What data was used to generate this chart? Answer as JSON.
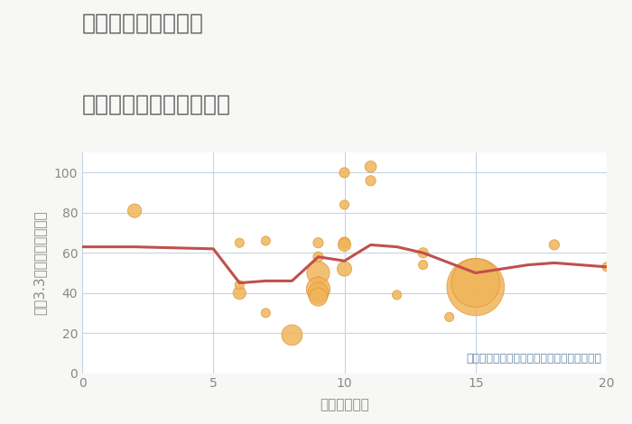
{
  "title_line1": "兵庫県川西市鴬台の",
  "title_line2": "駅距離別中古戸建て価格",
  "xlabel": "駅距離（分）",
  "ylabel": "坪（3.3㎡）単価（万円）",
  "annotation": "円の大きさは、取引のあった物件面積を示す",
  "background_color": "#f7f7f5",
  "plot_bg_color": "#ffffff",
  "grid_color": "#c5d5e5",
  "xlim": [
    0,
    20
  ],
  "ylim": [
    0,
    110
  ],
  "yticks": [
    0,
    20,
    40,
    60,
    80,
    100
  ],
  "xticks": [
    0,
    5,
    10,
    15,
    20
  ],
  "scatter_x": [
    2,
    6,
    6,
    6,
    7,
    7,
    8,
    9,
    9,
    9,
    9,
    9,
    9,
    9,
    9,
    10,
    10,
    10,
    10,
    10,
    11,
    11,
    12,
    13,
    13,
    14,
    15,
    15,
    18,
    20
  ],
  "scatter_y": [
    81,
    40,
    44,
    65,
    30,
    66,
    19,
    45,
    46,
    58,
    65,
    50,
    42,
    40,
    38,
    100,
    84,
    65,
    64,
    52,
    103,
    96,
    39,
    60,
    54,
    28,
    43,
    45,
    64,
    53
  ],
  "scatter_size": [
    40,
    35,
    18,
    18,
    18,
    18,
    90,
    18,
    18,
    22,
    22,
    110,
    120,
    90,
    70,
    22,
    18,
    28,
    35,
    45,
    28,
    22,
    18,
    22,
    18,
    18,
    700,
    500,
    22,
    18
  ],
  "line_x": [
    0,
    2,
    5,
    6,
    7,
    8,
    9,
    10,
    11,
    12,
    13,
    14,
    15,
    17,
    18,
    20
  ],
  "line_y": [
    63,
    63,
    62,
    45,
    46,
    46,
    58,
    56,
    64,
    63,
    60,
    55,
    50,
    54,
    55,
    53
  ],
  "line_color": "#c0504d",
  "scatter_color": "#f0b55a",
  "scatter_edge_color": "#e09535",
  "title_color": "#606060",
  "axis_label_color": "#888888",
  "tick_color": "#888888",
  "annotation_color": "#6688aa",
  "title_fontsize": 18,
  "axis_label_fontsize": 11,
  "tick_fontsize": 10,
  "annotation_fontsize": 9
}
